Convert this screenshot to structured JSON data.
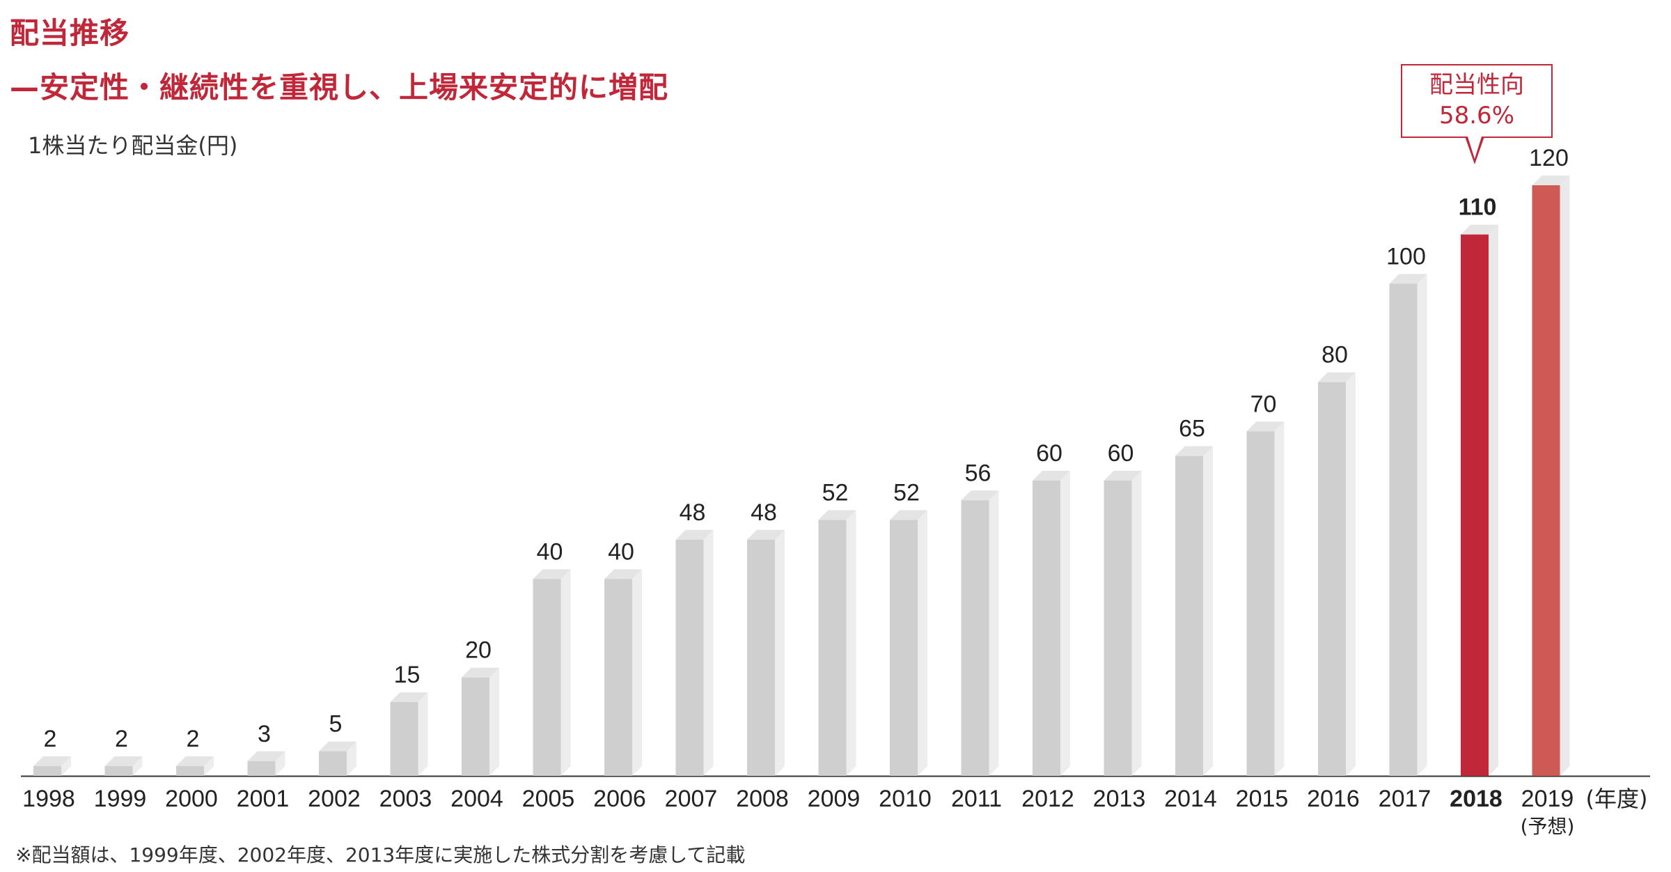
{
  "title": "配当推移",
  "subtitle": "—安定性・継続性を重視し、上場来安定的に増配",
  "unit_label": "1株当たり配当金(円)",
  "x_unit_label": "(年度)",
  "forecast_label": "(予想)",
  "note": "※配当額は、1999年度、2002年度、2013年度に実施した株式分割を考慮して記載",
  "callout": {
    "label": "配当性向",
    "value": "58.6%"
  },
  "colors": {
    "accent": "#c0283a",
    "forecast": "#cd5a54",
    "bar_gray": "#cfcfcf"
  },
  "chart_data": {
    "type": "bar",
    "categories": [
      "1998",
      "1999",
      "2000",
      "2001",
      "2002",
      "2003",
      "2004",
      "2005",
      "2006",
      "2007",
      "2008",
      "2009",
      "2010",
      "2011",
      "2012",
      "2013",
      "2014",
      "2015",
      "2016",
      "2017",
      "2018",
      "2019"
    ],
    "values": [
      2,
      2,
      2,
      3,
      5,
      15,
      20,
      40,
      40,
      48,
      48,
      52,
      52,
      56,
      60,
      60,
      65,
      70,
      80,
      100,
      110,
      120
    ],
    "highlight": "2018",
    "forecast": "2019",
    "ylabel": "1株当たり配当金(円)",
    "xlabel": "(年度)",
    "ylim": [
      0,
      120
    ],
    "grid": false
  }
}
